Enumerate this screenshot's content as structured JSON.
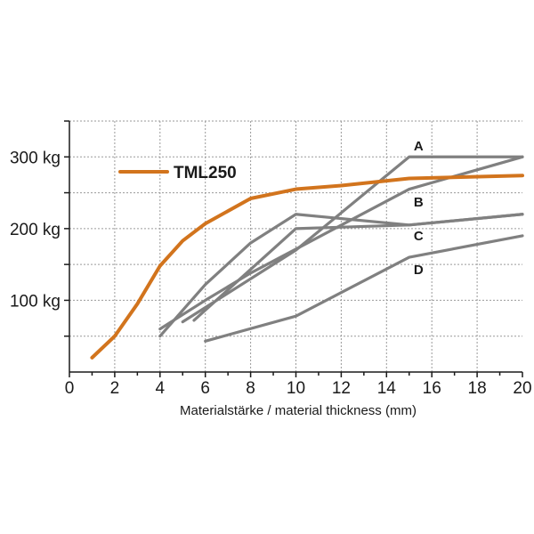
{
  "chart_data": {
    "type": "line",
    "title": "",
    "xlabel": "Materialstärke / material thickness (mm)",
    "ylabel": "",
    "xlim": [
      0,
      20
    ],
    "ylim": [
      0,
      350
    ],
    "x_ticks": [
      "0",
      "2",
      "4",
      "6",
      "8",
      "10",
      "12",
      "14",
      "16",
      "18",
      "20"
    ],
    "y_ticks": [
      {
        "value": 100,
        "label": "100 kg"
      },
      {
        "value": 200,
        "label": "200 kg"
      },
      {
        "value": 300,
        "label": "300 kg"
      }
    ],
    "grid": true,
    "legend": {
      "placement": "top-left",
      "entries": [
        "TML250"
      ]
    },
    "series": [
      {
        "name": "TML250",
        "color": "#d2741d",
        "x": [
          1,
          2,
          3,
          4,
          5,
          6,
          8,
          10,
          12,
          15,
          20
        ],
        "y": [
          20,
          50,
          95,
          148,
          183,
          207,
          242,
          255,
          260,
          270,
          274
        ]
      },
      {
        "name": "A",
        "color": "#808080",
        "x": [
          5,
          10,
          15,
          20
        ],
        "y": [
          70,
          170,
          300,
          300
        ]
      },
      {
        "name": "B",
        "color": "#808080",
        "x": [
          4,
          6,
          8,
          15,
          20
        ],
        "y": [
          60,
          100,
          138,
          255,
          300
        ]
      },
      {
        "name": "C",
        "color": "#808080",
        "x": [
          4,
          6,
          8,
          10,
          15,
          20
        ],
        "y": [
          50,
          122,
          180,
          220,
          205,
          220
        ]
      },
      {
        "name": "C-lower",
        "color": "#808080",
        "x": [
          5.5,
          10,
          15,
          20
        ],
        "y": [
          72,
          200,
          205,
          220
        ]
      },
      {
        "name": "D",
        "color": "#808080",
        "x": [
          6,
          10,
          15,
          20
        ],
        "y": [
          43,
          78,
          160,
          190
        ]
      }
    ],
    "series_labels": [
      {
        "text": "A",
        "x": 15.2,
        "y": 315
      },
      {
        "text": "B",
        "x": 15.2,
        "y": 237
      },
      {
        "text": "C",
        "x": 15.2,
        "y": 190
      },
      {
        "text": "D",
        "x": 15.2,
        "y": 143
      }
    ]
  }
}
